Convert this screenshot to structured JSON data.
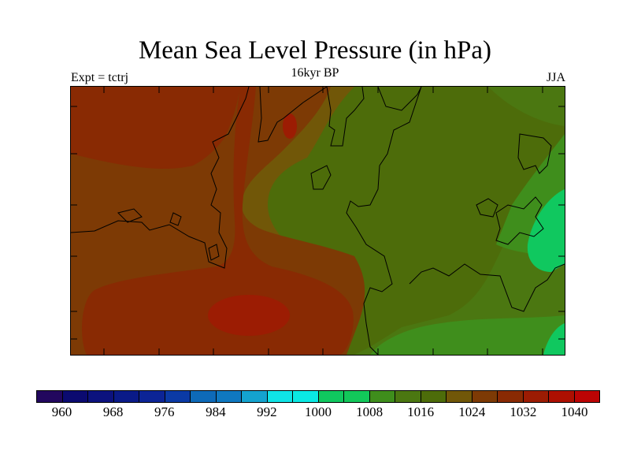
{
  "title": "Mean Sea Level Pressure (in hPa)",
  "subtitle_left": "Expt = tctrj",
  "subtitle_center": "16kyr BP",
  "subtitle_right": "JJA",
  "legend": {
    "colors": [
      "#22075e",
      "#0b0a70",
      "#0c127e",
      "#0a1a88",
      "#0c2496",
      "#0b3aa5",
      "#0e6ab8",
      "#0f78c0",
      "#14a3cf",
      "#0fe3e6",
      "#0ae9e4",
      "#10c85f",
      "#12c85a",
      "#3f8e1c",
      "#4b7711",
      "#4d6c0a",
      "#715708",
      "#7d3a05",
      "#892a03",
      "#9c1c03",
      "#ad1001",
      "#bc0404"
    ],
    "tick_labels": [
      "960",
      "968",
      "976",
      "984",
      "992",
      "1000",
      "1008",
      "1016",
      "1024",
      "1032",
      "1040"
    ]
  },
  "fill_colors": {
    "c1012": "#4b7711",
    "c1016": "#4d6c0a",
    "c1020": "#715708",
    "c1024": "#7d3a05",
    "c1028": "#892a03",
    "c1032": "#9c1c03",
    "c1008": "#3f8e1c",
    "c1004": "#10c85f",
    "coast": "#000000"
  }
}
